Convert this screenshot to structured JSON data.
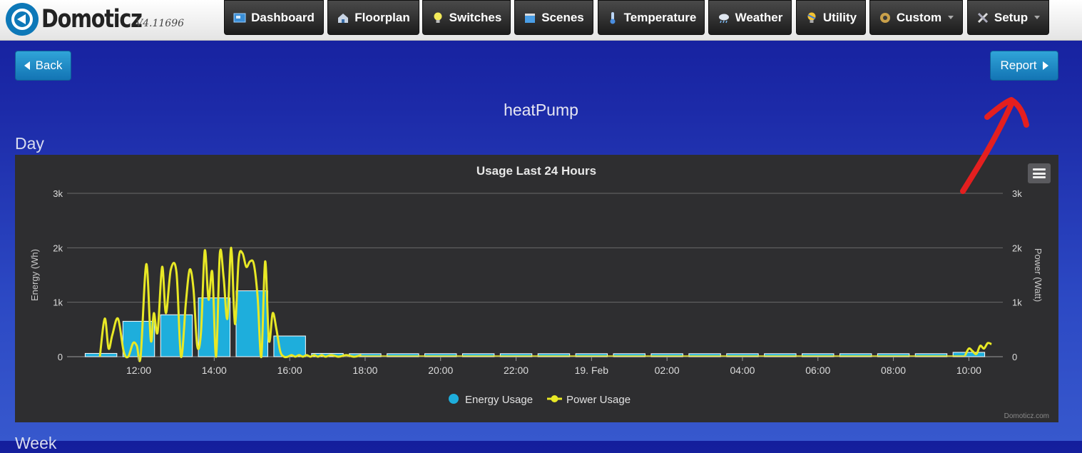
{
  "header": {
    "logo_text": "Domoticz",
    "version": "V4.11696",
    "nav": [
      {
        "label": "Dashboard",
        "icon": "dashboard-icon",
        "dropdown": false
      },
      {
        "label": "Floorplan",
        "icon": "floorplan-icon",
        "dropdown": false
      },
      {
        "label": "Switches",
        "icon": "lightbulb-icon",
        "dropdown": false
      },
      {
        "label": "Scenes",
        "icon": "clapperboard-icon",
        "dropdown": false
      },
      {
        "label": "Temperature",
        "icon": "thermometer-icon",
        "dropdown": false
      },
      {
        "label": "Weather",
        "icon": "cloud-rain-icon",
        "dropdown": false
      },
      {
        "label": "Utility",
        "icon": "utility-bulb-icon",
        "dropdown": false
      },
      {
        "label": "Custom",
        "icon": "gear-icon",
        "dropdown": true
      },
      {
        "label": "Setup",
        "icon": "tools-icon",
        "dropdown": true
      }
    ]
  },
  "page": {
    "back_label": "Back",
    "report_label": "Report",
    "device_name": "heatPump",
    "section_day": "Day",
    "section_next": "Week"
  },
  "colors": {
    "energy": "#1eaedc",
    "power": "#e8e825",
    "annotation": "#e41f1f"
  },
  "chart_data": {
    "type": "bar",
    "title": "Usage Last 24 Hours",
    "credit": "Domoticz.com",
    "legend_position": "bottom-center",
    "grid": true,
    "x_ticks": [
      "12:00",
      "14:00",
      "16:00",
      "18:00",
      "20:00",
      "22:00",
      "19. Feb",
      "02:00",
      "04:00",
      "06:00",
      "08:00",
      "10:00"
    ],
    "x_range": [
      10.1,
      34.9
    ],
    "y_left": {
      "label": "Energy (Wh)",
      "range": [
        0,
        3000
      ],
      "ticks": [
        "0",
        "1k",
        "2k",
        "3k"
      ]
    },
    "y_right": {
      "label": "Power (Watt)",
      "range": [
        0,
        3000
      ],
      "ticks": [
        "0",
        "1k",
        "2k",
        "3k"
      ]
    },
    "series": [
      {
        "name": "Energy Usage",
        "type": "bar",
        "x": [
          11,
          12,
          13,
          14,
          15,
          16,
          17,
          18,
          19,
          20,
          21,
          22,
          23,
          24,
          25,
          26,
          27,
          28,
          29,
          30,
          31,
          32,
          33,
          34
        ],
        "values": [
          60,
          650,
          770,
          1080,
          1210,
          380,
          60,
          55,
          55,
          55,
          55,
          55,
          55,
          55,
          55,
          55,
          55,
          55,
          55,
          55,
          55,
          55,
          55,
          80
        ]
      },
      {
        "name": "Power Usage",
        "type": "line",
        "x": [
          10.97,
          11.1,
          11.2,
          11.3,
          11.45,
          11.6,
          11.72,
          11.85,
          11.95,
          12.05,
          12.2,
          12.32,
          12.4,
          12.5,
          12.62,
          12.72,
          12.85,
          13.0,
          13.12,
          13.25,
          13.35,
          13.45,
          13.55,
          13.65,
          13.75,
          13.85,
          13.95,
          14.05,
          14.15,
          14.25,
          14.35,
          14.45,
          14.55,
          14.65,
          14.75,
          14.85,
          14.95,
          15.05,
          15.15,
          15.25,
          15.35,
          15.45,
          15.55,
          15.65,
          15.75,
          15.85,
          15.95,
          16.05,
          16.15,
          16.25,
          16.35,
          16.45,
          16.55,
          16.65,
          16.75,
          16.85,
          16.95,
          17.1,
          17.3,
          17.5,
          17.7,
          17.9,
          33.9,
          34.0,
          34.1,
          34.2,
          34.3,
          34.4,
          34.5,
          34.6
        ],
        "values": [
          0,
          700,
          150,
          400,
          700,
          100,
          0,
          250,
          200,
          0,
          1700,
          300,
          800,
          450,
          1650,
          800,
          1600,
          1550,
          0,
          1000,
          1600,
          1250,
          200,
          450,
          1950,
          1050,
          1550,
          0,
          1900,
          1450,
          700,
          2000,
          600,
          1800,
          1900,
          1650,
          1750,
          1700,
          1100,
          0,
          1750,
          300,
          800,
          500,
          100,
          0,
          0,
          30,
          0,
          30,
          0,
          30,
          0,
          30,
          0,
          30,
          0,
          30,
          0,
          30,
          0,
          30,
          20,
          150,
          100,
          50,
          200,
          150,
          250,
          230
        ]
      }
    ]
  }
}
